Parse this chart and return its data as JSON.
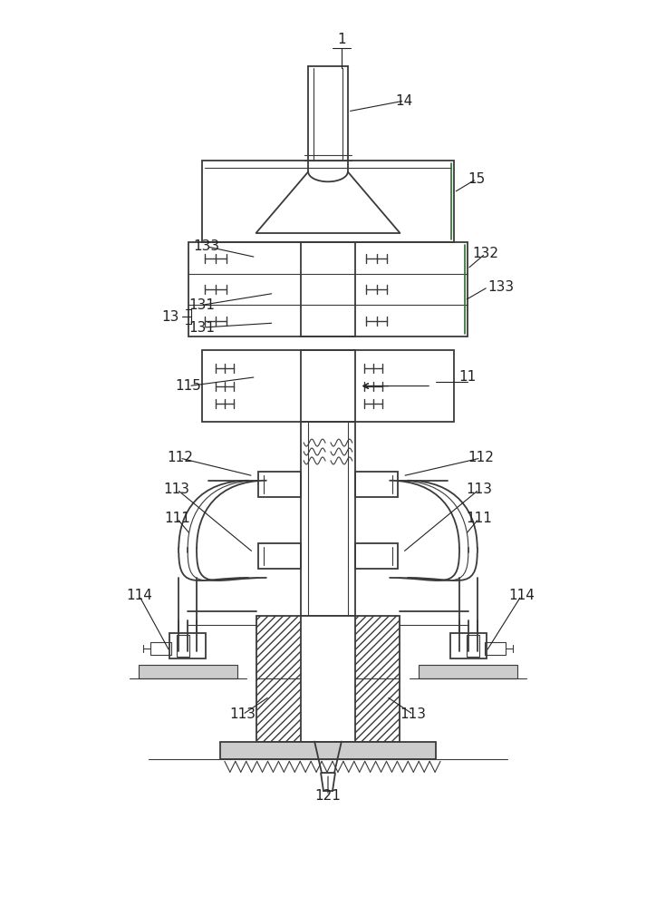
{
  "fig_width": 7.24,
  "fig_height": 10.0,
  "dpi": 100,
  "bg_color": "#ffffff",
  "lc": "#3a3a3a",
  "lc_green": "#2a6e2a",
  "label_fs": 11
}
